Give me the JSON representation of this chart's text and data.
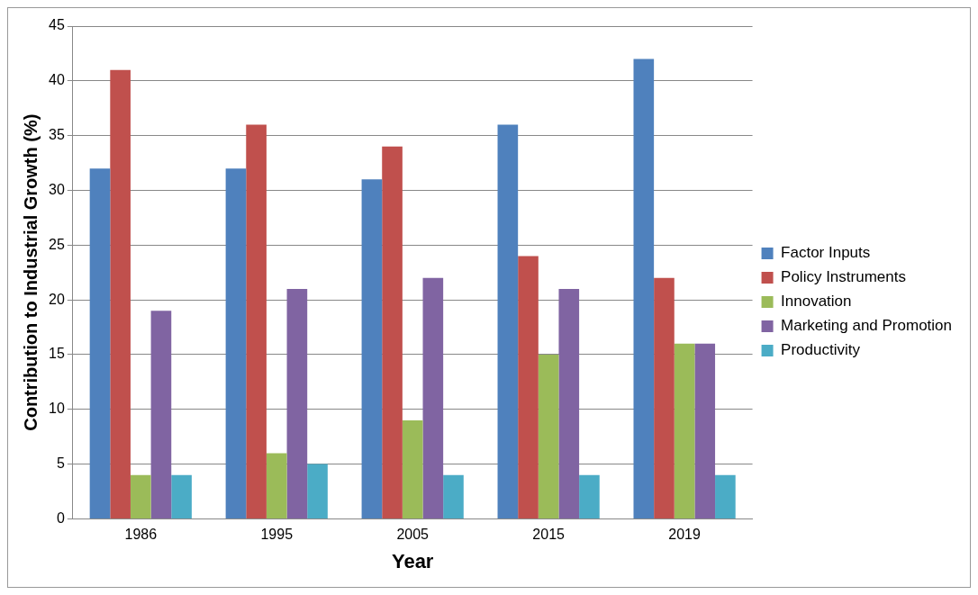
{
  "chart_data": {
    "type": "bar",
    "xlabel": "Year",
    "ylabel": "Contribution to Industrial Growth (%)",
    "categories": [
      "1986",
      "1995",
      "2005",
      "2015",
      "2019"
    ],
    "series": [
      {
        "name": "Factor Inputs",
        "color": "#4f81bd",
        "values": [
          32,
          32,
          31,
          36,
          42
        ]
      },
      {
        "name": "Policy Instruments",
        "color": "#c0504d",
        "values": [
          41,
          36,
          34,
          24,
          22
        ]
      },
      {
        "name": "Innovation",
        "color": "#9bbb59",
        "values": [
          4,
          6,
          9,
          15,
          16
        ]
      },
      {
        "name": "Marketing and Promotion",
        "color": "#8064a2",
        "values": [
          19,
          21,
          22,
          21,
          16
        ]
      },
      {
        "name": "Productivity",
        "color": "#4bacc6",
        "values": [
          4,
          5,
          4,
          4,
          4
        ]
      }
    ],
    "ylim": [
      0,
      45
    ],
    "yticks": [
      0,
      5,
      10,
      15,
      20,
      25,
      30,
      35,
      40,
      45
    ],
    "grid": "y",
    "legend": "right"
  }
}
